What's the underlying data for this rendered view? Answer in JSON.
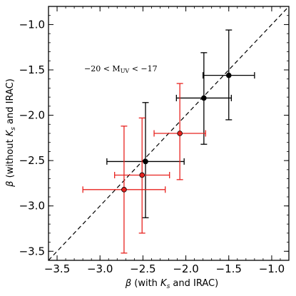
{
  "chart_data": {
    "type": "scatter",
    "title": "",
    "xlabel_parts": [
      "β",
      " (with ",
      "K",
      "s",
      " and IRAC)"
    ],
    "ylabel_parts": [
      "β",
      " (without ",
      "K",
      "s",
      " and IRAC)"
    ],
    "xlim": [
      -3.6,
      -0.8
    ],
    "ylim": [
      -3.6,
      -0.8
    ],
    "xticks": [
      -3.5,
      -3.0,
      -2.5,
      -2.0,
      -1.5,
      -1.0
    ],
    "yticks": [
      -3.5,
      -3.0,
      -2.5,
      -2.0,
      -1.5,
      -1.0
    ],
    "xtick_labels": [
      "−3.5",
      "−3.0",
      "−2.5",
      "−2.0",
      "−1.5",
      "−1.0"
    ],
    "ytick_labels": [
      "−3.5",
      "−3.0",
      "−2.5",
      "−2.0",
      "−1.5",
      "−1.0"
    ],
    "grid": false,
    "annotation_parts": [
      "−20 < M",
      "UV",
      " < −17"
    ],
    "one_to_one_line": true,
    "series": [
      {
        "color": "#000000",
        "points": [
          {
            "x": -1.5,
            "y": -1.56,
            "xerr": 0.3,
            "yerr_low": 0.49,
            "yerr_high": 0.5
          },
          {
            "x": -1.79,
            "y": -1.81,
            "xerr": 0.32,
            "yerr_low": 0.51,
            "yerr_high": 0.5
          },
          {
            "x": -2.47,
            "y": -2.51,
            "xerr": 0.45,
            "yerr_low": 0.62,
            "yerr_high": 0.65
          }
        ]
      },
      {
        "color": "#e8231f",
        "points": [
          {
            "x": -2.07,
            "y": -2.2,
            "xerr": 0.3,
            "yerr_low": 0.51,
            "yerr_high": 0.55
          },
          {
            "x": -2.51,
            "y": -2.66,
            "xerr": 0.32,
            "yerr_low": 0.64,
            "yerr_high": 0.63
          },
          {
            "x": -2.72,
            "y": -2.82,
            "xerr": 0.48,
            "yerr_low": 0.7,
            "yerr_high": 0.7
          }
        ]
      }
    ]
  }
}
